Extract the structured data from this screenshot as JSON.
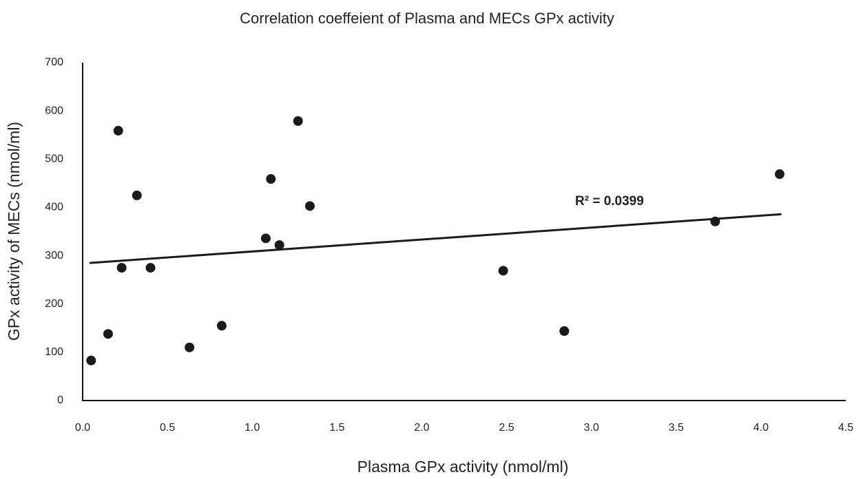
{
  "chart_data": {
    "type": "scatter",
    "title": "Correlation coeffeient of Plasma and MECs GPx activity",
    "x_label": "Plasma GPx activity (nmol/ml)",
    "y_label": "GPx activity of  MECs (nmol/ml)",
    "color": "#1a1a1a",
    "series": [
      {
        "x": [
          0.05,
          0.15,
          0.21,
          0.23,
          0.32,
          0.4,
          0.63,
          0.82,
          1.08,
          1.11,
          1.16,
          1.27,
          1.34,
          2.48,
          2.84,
          3.73,
          4.11
        ],
        "values": [
          83,
          138,
          559,
          275,
          425,
          275,
          110,
          155,
          336,
          459,
          322,
          579,
          403,
          269,
          144,
          371,
          469
        ]
      }
    ],
    "trendline": {
      "x": [
        0.04,
        4.12
      ],
      "values": [
        285,
        386
      ]
    },
    "annotation": "R² = 0.0399",
    "xlim": [
      0,
      4.5
    ],
    "xticks": [
      {
        "value": 0,
        "label": "0.0"
      },
      0.5,
      {
        "value": 1,
        "label": "1.0"
      },
      1.5,
      {
        "value": 2,
        "label": "2.0"
      },
      2.5,
      {
        "value": 3,
        "label": "3.0"
      },
      3.5,
      {
        "value": 4,
        "label": "4.0"
      },
      4.5
    ],
    "ylim": [
      0,
      700
    ],
    "yticks": [
      0,
      100,
      200,
      300,
      400,
      500,
      600,
      700
    ],
    "grid": false
  }
}
